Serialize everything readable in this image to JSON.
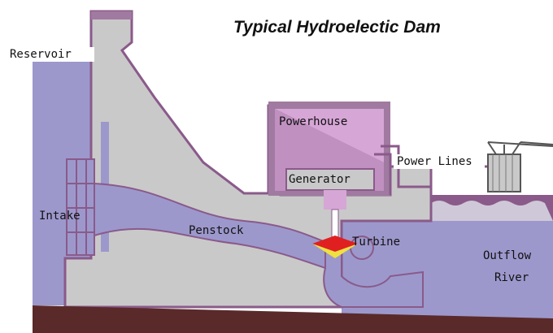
{
  "title": "Typical Hydroelectic Dam",
  "labels": {
    "reservoir": "Reservoir",
    "powerhouse": "Powerhouse",
    "power_lines": "Power Lines",
    "generator": "Generator",
    "intake": "Intake",
    "penstock": "Penstock",
    "turbine": "Turbine",
    "outflow": "Outflow",
    "river": "River"
  }
}
